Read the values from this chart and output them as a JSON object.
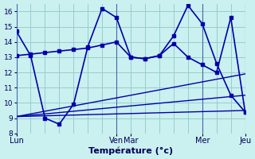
{
  "xlabel": "Température (°c)",
  "bg_color": "#caf0f0",
  "grid_color": "#99cccc",
  "line_color": "#0000aa",
  "ylim": [
    8,
    16.5
  ],
  "xlim": [
    0,
    192
  ],
  "yticks": [
    8,
    9,
    10,
    11,
    12,
    13,
    14,
    15,
    16
  ],
  "day_labels": [
    "Lun",
    "Ven",
    "Mar",
    "Mer",
    "Jeu"
  ],
  "day_positions": [
    0,
    84,
    96,
    156,
    192
  ],
  "vline_positions": [
    0,
    84,
    156,
    192
  ],
  "lines": [
    {
      "x": [
        0,
        12,
        24,
        36,
        48,
        60,
        72,
        84,
        96,
        108,
        120,
        132,
        144,
        156,
        168,
        180,
        192
      ],
      "y": [
        14.7,
        13.1,
        9.0,
        8.6,
        9.9,
        13.7,
        16.2,
        15.6,
        13.0,
        12.9,
        13.1,
        14.4,
        16.4,
        15.2,
        12.6,
        10.5,
        9.4
      ],
      "marker": true,
      "linewidth": 1.2
    },
    {
      "x": [
        0,
        12,
        24,
        36,
        48,
        60,
        72,
        84,
        96,
        108,
        120,
        132,
        144,
        156,
        168,
        180,
        192
      ],
      "y": [
        13.1,
        13.2,
        13.3,
        13.4,
        13.5,
        13.6,
        13.8,
        14.0,
        13.0,
        12.9,
        13.1,
        13.9,
        13.0,
        12.5,
        12.0,
        15.6,
        9.4
      ],
      "marker": true,
      "linewidth": 1.2
    },
    {
      "x": [
        0,
        192
      ],
      "y": [
        9.1,
        9.5
      ],
      "marker": false,
      "linewidth": 1.0
    },
    {
      "x": [
        0,
        192
      ],
      "y": [
        9.1,
        10.5
      ],
      "marker": false,
      "linewidth": 1.0
    },
    {
      "x": [
        0,
        192
      ],
      "y": [
        9.1,
        11.9
      ],
      "marker": false,
      "linewidth": 1.0
    }
  ]
}
